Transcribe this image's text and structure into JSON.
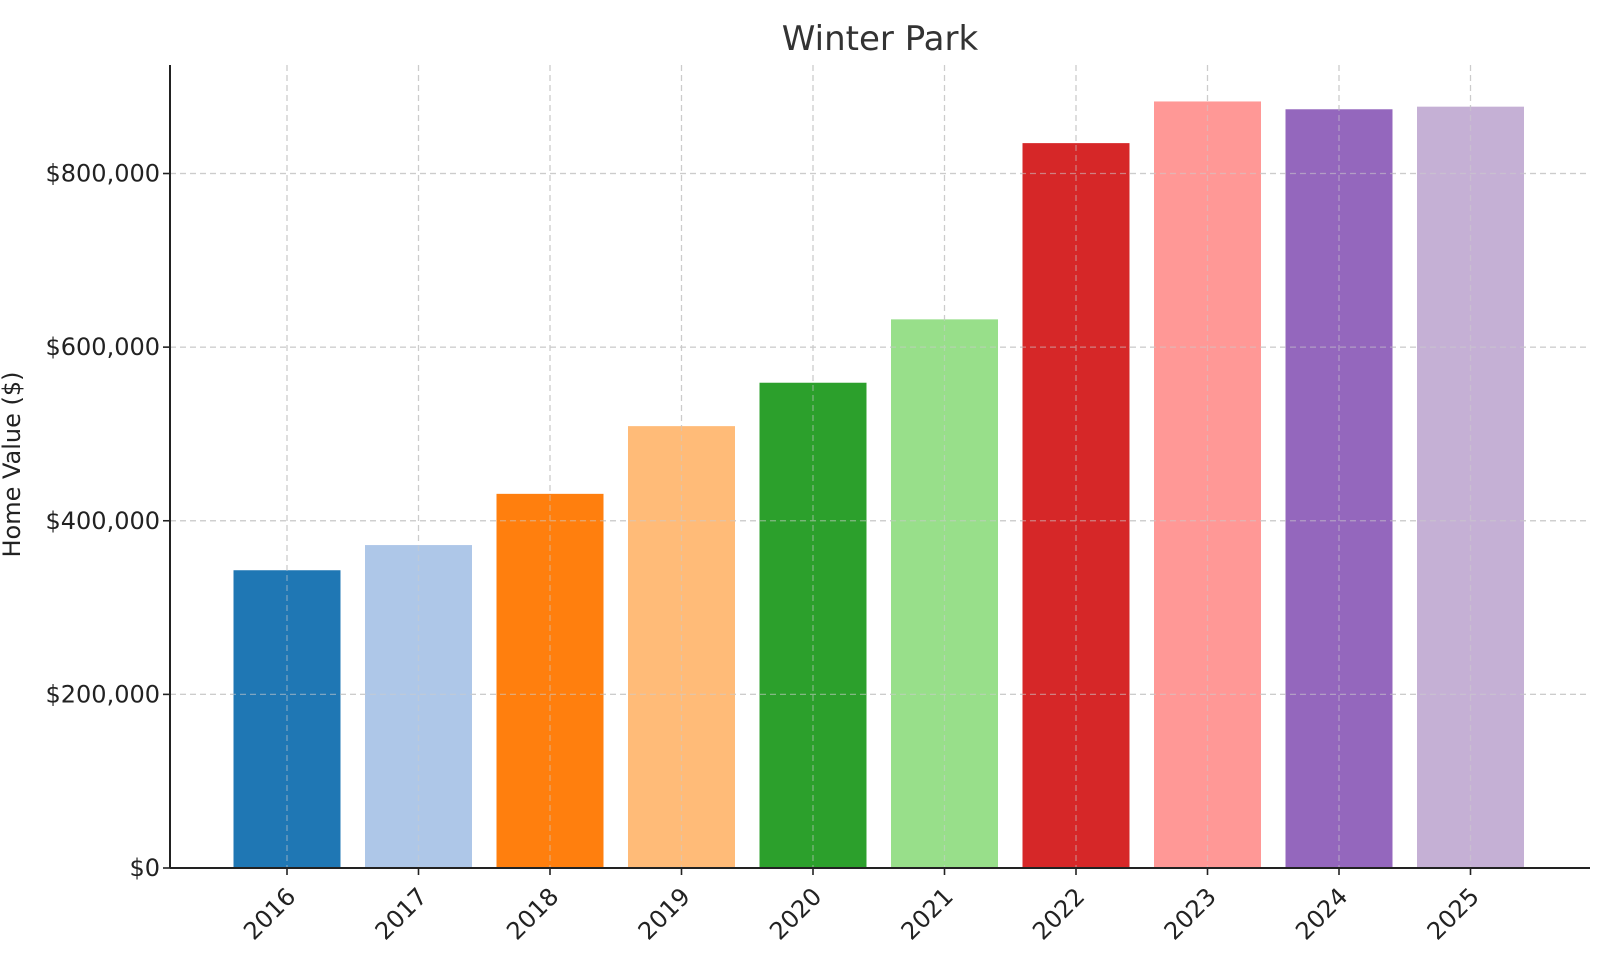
{
  "chart_data": {
    "type": "bar",
    "title": "Winter Park",
    "xlabel": "",
    "ylabel": "Home Value ($)",
    "categories": [
      "2016",
      "2017",
      "2018",
      "2019",
      "2020",
      "2021",
      "2022",
      "2023",
      "2024",
      "2025"
    ],
    "values": [
      343000,
      372000,
      431000,
      509000,
      559000,
      632000,
      835000,
      883000,
      874000,
      877000
    ],
    "colors": [
      "#1f77b4",
      "#aec7e8",
      "#ff7f0e",
      "#ffbb78",
      "#2ca02c",
      "#98df8a",
      "#d62728",
      "#ff9896",
      "#9467bd",
      "#c5b0d5"
    ],
    "ylim": [
      0,
      925000
    ],
    "yticks": [
      0,
      200000,
      400000,
      600000,
      800000
    ],
    "ytick_labels": [
      "$0",
      "$200,000",
      "$400,000",
      "$600,000",
      "$800,000"
    ],
    "grid": true,
    "legend": "none"
  }
}
